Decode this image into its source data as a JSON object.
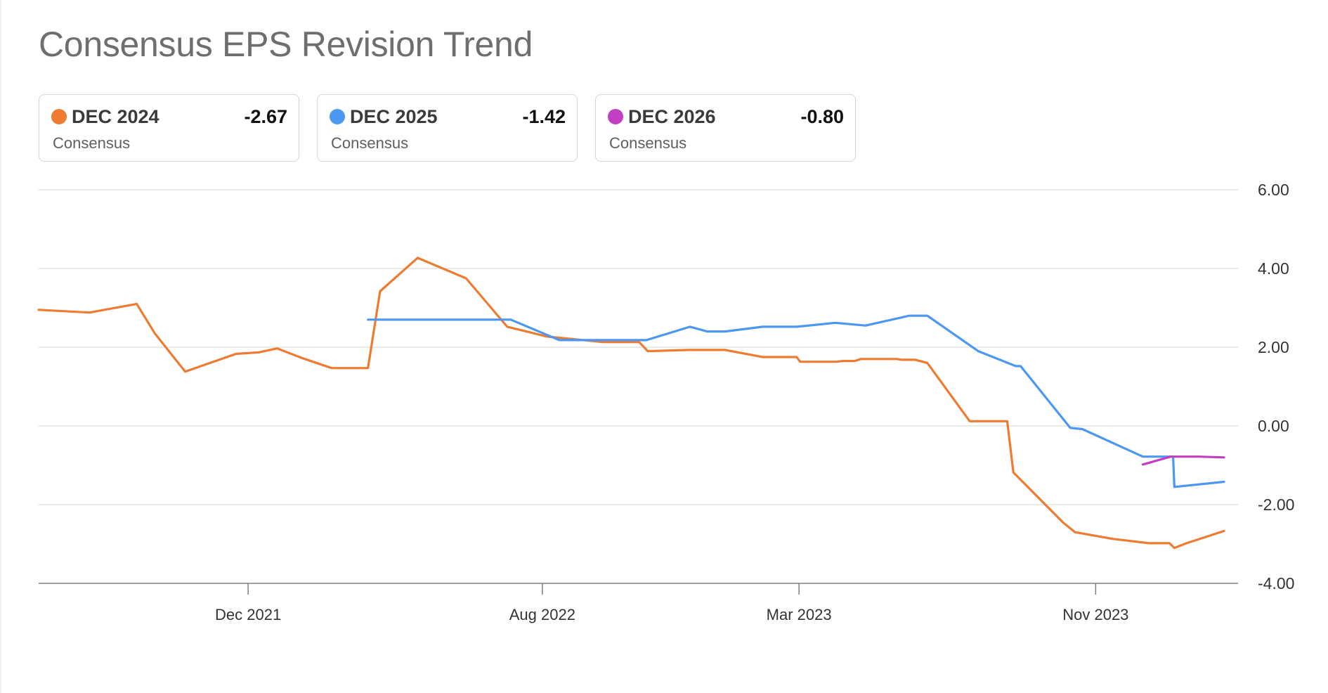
{
  "chart_data": {
    "type": "line",
    "title": "Consensus EPS Revision Trend",
    "xlabel": "",
    "ylabel": "",
    "ylim": [
      -4,
      6
    ],
    "xlim": [
      "2021-06-11",
      "2024-02-15"
    ],
    "y_ticks": [
      "6.00",
      "4.00",
      "2.00",
      "0.00",
      "-2.00",
      "-4.00"
    ],
    "x_ticks": [
      {
        "label": "Dec 2021",
        "date": "2021-12-01"
      },
      {
        "label": "Aug 2022",
        "date": "2022-08-01"
      },
      {
        "label": "Mar 2023",
        "date": "2023-03-01"
      },
      {
        "label": "Nov 2023",
        "date": "2023-11-01"
      }
    ],
    "grid": true,
    "legend_placement": "top-left",
    "series": [
      {
        "name": "DEC 2024",
        "subtitle": "Consensus",
        "latest": "-2.67",
        "color": "#ee7b30",
        "points": [
          [
            "2021-06-11",
            2.95
          ],
          [
            "2021-07-23",
            2.88
          ],
          [
            "2021-08-31",
            3.1
          ],
          [
            "2021-09-15",
            2.35
          ],
          [
            "2021-10-10",
            1.38
          ],
          [
            "2021-11-21",
            1.83
          ],
          [
            "2021-12-10",
            1.87
          ],
          [
            "2021-12-25",
            1.97
          ],
          [
            "2022-01-15",
            1.72
          ],
          [
            "2022-02-08",
            1.47
          ],
          [
            "2022-03-10",
            1.47
          ],
          [
            "2022-03-20",
            3.42
          ],
          [
            "2022-04-20",
            4.27
          ],
          [
            "2022-05-30",
            3.75
          ],
          [
            "2022-07-03",
            2.52
          ],
          [
            "2022-08-05",
            2.27
          ],
          [
            "2022-09-20",
            2.13
          ],
          [
            "2022-10-20",
            2.13
          ],
          [
            "2022-10-27",
            1.9
          ],
          [
            "2022-11-30",
            1.93
          ],
          [
            "2022-12-30",
            1.93
          ],
          [
            "2023-01-30",
            1.75
          ],
          [
            "2023-02-27",
            1.75
          ],
          [
            "2023-03-02",
            1.63
          ],
          [
            "2023-04-01",
            1.63
          ],
          [
            "2023-04-06",
            1.65
          ],
          [
            "2023-04-16",
            1.65
          ],
          [
            "2023-04-21",
            1.7
          ],
          [
            "2023-05-01",
            1.7
          ],
          [
            "2023-05-21",
            1.7
          ],
          [
            "2023-05-25",
            1.68
          ],
          [
            "2023-06-05",
            1.68
          ],
          [
            "2023-06-15",
            1.6
          ],
          [
            "2023-07-20",
            0.12
          ],
          [
            "2023-08-20",
            0.12
          ],
          [
            "2023-08-25",
            -1.18
          ],
          [
            "2023-10-05",
            -2.45
          ],
          [
            "2023-10-15",
            -2.7
          ],
          [
            "2023-11-15",
            -2.87
          ],
          [
            "2023-12-15",
            -2.98
          ],
          [
            "2024-01-01",
            -2.98
          ],
          [
            "2024-01-05",
            -3.1
          ],
          [
            "2024-01-15",
            -2.98
          ],
          [
            "2024-02-15",
            -2.67
          ]
        ]
      },
      {
        "name": "DEC 2025",
        "subtitle": "Consensus",
        "latest": "-1.42",
        "color": "#4c97f2",
        "points": [
          [
            "2022-03-10",
            2.7
          ],
          [
            "2022-05-31",
            2.7
          ],
          [
            "2022-07-01",
            2.7
          ],
          [
            "2022-07-06",
            2.7
          ],
          [
            "2022-08-15",
            2.18
          ],
          [
            "2022-09-15",
            2.18
          ],
          [
            "2022-10-26",
            2.18
          ],
          [
            "2022-12-01",
            2.52
          ],
          [
            "2022-12-15",
            2.4
          ],
          [
            "2022-12-30",
            2.4
          ],
          [
            "2023-01-30",
            2.52
          ],
          [
            "2023-02-27",
            2.52
          ],
          [
            "2023-03-31",
            2.62
          ],
          [
            "2023-04-25",
            2.55
          ],
          [
            "2023-05-31",
            2.8
          ],
          [
            "2023-06-15",
            2.8
          ],
          [
            "2023-07-27",
            1.9
          ],
          [
            "2023-08-27",
            1.52
          ],
          [
            "2023-08-31",
            1.52
          ],
          [
            "2023-10-11",
            -0.05
          ],
          [
            "2023-10-21",
            -0.08
          ],
          [
            "2023-12-10",
            -0.78
          ],
          [
            "2024-01-02",
            -0.78
          ],
          [
            "2024-01-04",
            -0.78
          ],
          [
            "2024-01-05",
            -1.55
          ],
          [
            "2024-02-15",
            -1.42
          ]
        ]
      },
      {
        "name": "DEC 2026",
        "subtitle": "Consensus",
        "latest": "-0.80",
        "color": "#c23fc2",
        "points": [
          [
            "2023-12-10",
            -0.98
          ],
          [
            "2024-01-02",
            -0.78
          ],
          [
            "2024-01-25",
            -0.78
          ],
          [
            "2024-02-15",
            -0.8
          ]
        ]
      }
    ]
  }
}
